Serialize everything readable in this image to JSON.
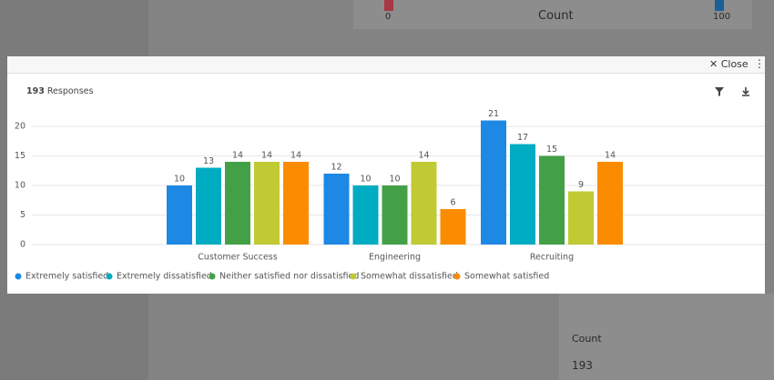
{
  "background": {
    "top_axis_start": 0,
    "top_axis_title": "Count",
    "top_axis_end": 100,
    "side_header": "Count",
    "side_value": 193
  },
  "modal": {
    "close": "Close",
    "response_count": 193,
    "response_label": "Responses"
  },
  "chart_data": {
    "type": "bar",
    "categories": [
      "Customer Success",
      "Engineering",
      "Recruiting"
    ],
    "series": [
      {
        "name": "Extremely satisfied",
        "color": "#1e88e5",
        "values": [
          10,
          12,
          21
        ]
      },
      {
        "name": "Extremely dissatisfied",
        "color": "#00acc1",
        "values": [
          13,
          10,
          17
        ]
      },
      {
        "name": "Neither satisfied nor dissatisfied",
        "color": "#43a047",
        "values": [
          14,
          10,
          15
        ]
      },
      {
        "name": "Somewhat dissatisfied",
        "color": "#c0ca33",
        "values": [
          14,
          14,
          9
        ]
      },
      {
        "name": "Somewhat satisfied",
        "color": "#fb8c00",
        "values": [
          14,
          6,
          14
        ]
      }
    ],
    "ylim": [
      0,
      22
    ],
    "yticks": [
      0,
      5,
      10,
      15,
      20
    ],
    "grid": true,
    "legend": "bottom"
  }
}
